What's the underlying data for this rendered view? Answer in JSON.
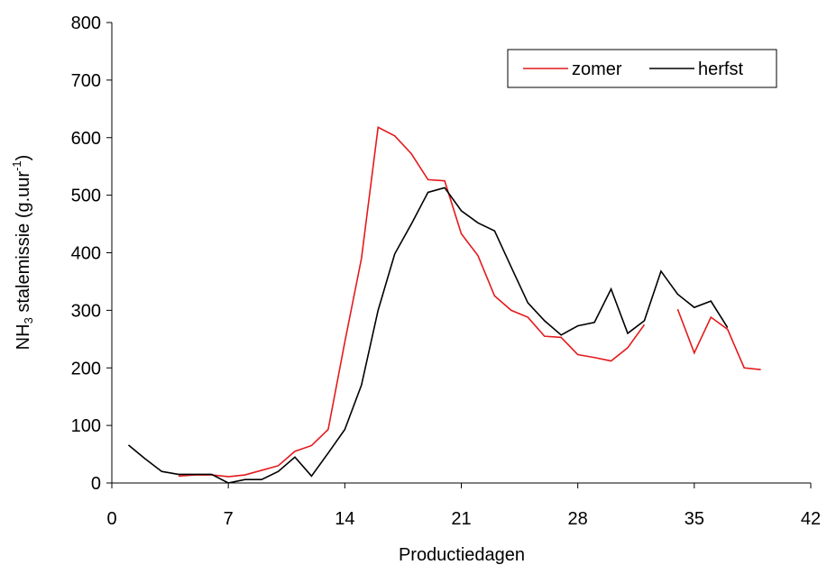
{
  "chart_data": {
    "type": "line",
    "y_label": {
      "main": "NH",
      "sub": "3",
      "rest": " stalemissie (g.uur",
      "sup": "-1",
      "end": ")"
    },
    "x_label": "Productiedagen",
    "x": [
      1,
      2,
      3,
      4,
      5,
      6,
      7,
      8,
      9,
      10,
      11,
      12,
      13,
      14,
      15,
      16,
      17,
      18,
      19,
      20,
      21,
      22,
      23,
      24,
      25,
      26,
      27,
      28,
      29,
      30,
      31,
      32,
      33,
      34,
      35,
      36,
      37,
      38,
      39
    ],
    "series": [
      {
        "name": "zomer",
        "color": "#e41a1c",
        "values": [
          null,
          null,
          null,
          12,
          14,
          14,
          11,
          14,
          22,
          30,
          55,
          65,
          93,
          245,
          390,
          618,
          603,
          572,
          527,
          525,
          433,
          395,
          325,
          300,
          288,
          255,
          253,
          223,
          218,
          212,
          235,
          275,
          null,
          302,
          226,
          288,
          267,
          200,
          197
        ]
      },
      {
        "name": "herfst",
        "color": "#000000",
        "values": [
          66,
          42,
          20,
          15,
          15,
          15,
          0,
          6,
          6,
          20,
          45,
          12,
          52,
          93,
          170,
          300,
          398,
          450,
          505,
          513,
          473,
          452,
          438,
          375,
          313,
          282,
          257,
          273,
          279,
          337,
          260,
          282,
          368,
          328,
          305,
          316,
          270,
          null,
          null
        ]
      }
    ],
    "xlim": [
      0,
      42
    ],
    "xticks": [
      0,
      7,
      14,
      21,
      28,
      35,
      42
    ],
    "ylim": [
      0,
      800
    ],
    "yticks": [
      0,
      100,
      200,
      300,
      400,
      500,
      600,
      700,
      800
    ],
    "grid": false,
    "legend": "upper right"
  }
}
